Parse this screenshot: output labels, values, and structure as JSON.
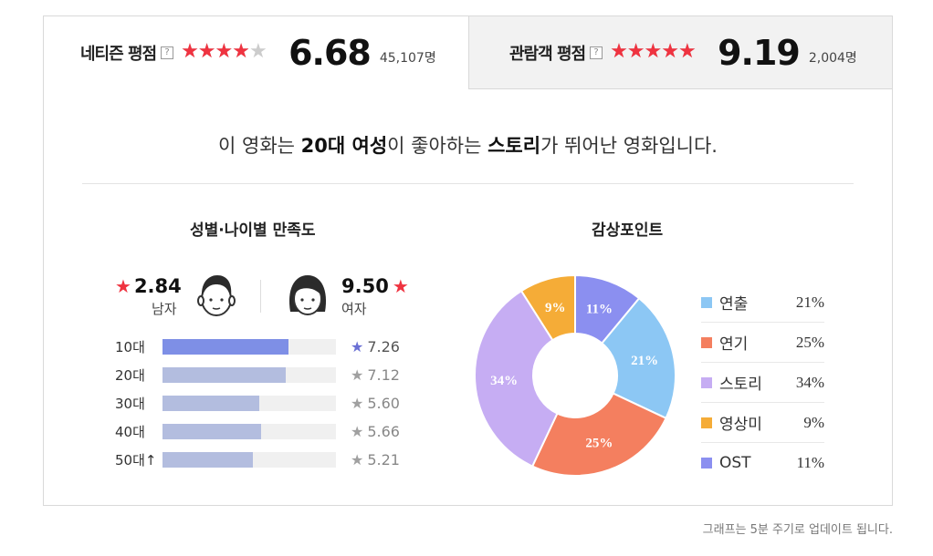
{
  "tabs": {
    "netizen": {
      "label": "네티즌 평점",
      "help": "?",
      "score": "6.68",
      "count": "45,107명",
      "stars_fill": 0.668
    },
    "audience": {
      "label": "관람객 평점",
      "help": "?",
      "score": "9.19",
      "count": "2,004명",
      "stars_fill": 0.919
    }
  },
  "summary": {
    "prefix": "이 영화는 ",
    "group": "20대 여성",
    "mid": "이 좋아하는 ",
    "point": "스토리",
    "suffix": "가 뛰어난 영화입니다."
  },
  "sections": {
    "left_title": "성별·나이별 만족도",
    "right_title": "감상포인트"
  },
  "gender": {
    "male": {
      "score": "2.84",
      "label": "남자"
    },
    "female": {
      "score": "9.50",
      "label": "여자"
    }
  },
  "age": [
    {
      "label": "10대",
      "score": "7.26",
      "value": 7.26,
      "highlight": true
    },
    {
      "label": "20대",
      "score": "7.12",
      "value": 7.12,
      "highlight": false
    },
    {
      "label": "30대",
      "score": "5.60",
      "value": 5.6,
      "highlight": false
    },
    {
      "label": "40대",
      "score": "5.66",
      "value": 5.66,
      "highlight": false
    },
    {
      "label": "50대↑",
      "score": "5.21",
      "value": 5.21,
      "highlight": false
    }
  ],
  "chart_data": {
    "type": "pie",
    "categories": [
      "연출",
      "연기",
      "스토리",
      "영상미",
      "OST"
    ],
    "values": [
      21,
      25,
      34,
      9,
      11
    ],
    "labels": [
      "21%",
      "25%",
      "34%",
      "9%",
      "11%"
    ],
    "colors": [
      "#8cc7f4",
      "#f47f5f",
      "#c6adf3",
      "#f5ac37",
      "#8b8ff0"
    ],
    "start_category": "OST"
  },
  "footnote": "그래프는 5분 주기로 업데이트 됩니다.",
  "colors": {
    "accent_red": "#ef3340",
    "highlight_bar": "#7e8fe6",
    "bar": "#b3bddf"
  }
}
